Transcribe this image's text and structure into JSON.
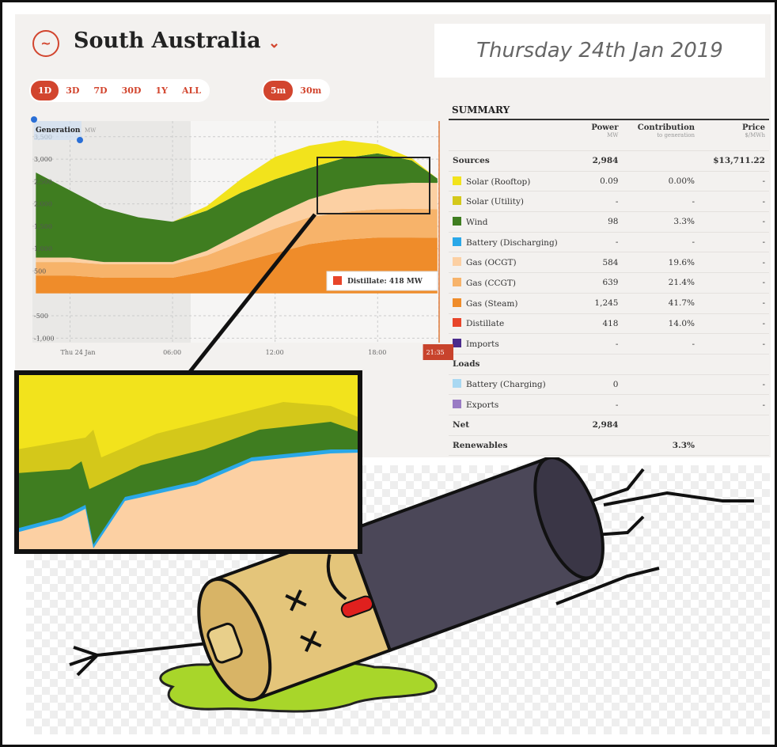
{
  "header": {
    "title": "South Australia",
    "date": "Thursday 24th Jan 2019"
  },
  "range_buttons": [
    "1D",
    "3D",
    "7D",
    "30D",
    "1Y",
    "ALL"
  ],
  "interval_buttons": [
    "5m",
    "30m"
  ],
  "chart_data": {
    "type": "area",
    "stacked": true,
    "y_label": "Generation",
    "y_unit": "MW",
    "x": [
      -2,
      0,
      2,
      4,
      6,
      8,
      10,
      12,
      14,
      16,
      18,
      20,
      21.5
    ],
    "series": [
      {
        "name": "Gas (Steam)",
        "color": "#ef8c2a",
        "values": [
          400,
          400,
          350,
          350,
          350,
          500,
          700,
          900,
          1100,
          1200,
          1250,
          1250,
          1245
        ]
      },
      {
        "name": "Gas (CCGT)",
        "color": "#f7b36a",
        "values": [
          300,
          300,
          300,
          300,
          300,
          350,
          450,
          550,
          600,
          620,
          630,
          640,
          639
        ]
      },
      {
        "name": "Gas (OCGT)",
        "color": "#fcd0a3",
        "values": [
          100,
          100,
          50,
          50,
          50,
          100,
          200,
          300,
          400,
          500,
          550,
          580,
          584
        ]
      },
      {
        "name": "Wind",
        "color": "#3f7d20",
        "values": [
          1900,
          1500,
          1200,
          1000,
          900,
          900,
          900,
          800,
          700,
          700,
          700,
          500,
          98
        ]
      },
      {
        "name": "Solar (Rooftop)",
        "color": "#f2e31c",
        "values": [
          0,
          0,
          0,
          0,
          0,
          100,
          300,
          500,
          500,
          400,
          200,
          50,
          0
        ]
      }
    ],
    "xlim": [
      -2.2,
      21.6
    ],
    "ylim": [
      -1100,
      3850
    ],
    "yticks": [
      {
        "value": 3500,
        "label": "3,500"
      },
      {
        "value": 3000,
        "label": "3,000"
      },
      {
        "value": 2500,
        "label": "2,500"
      },
      {
        "value": 2000,
        "label": "2,000"
      },
      {
        "value": 1500,
        "label": "1,500"
      },
      {
        "value": 1000,
        "label": "1,000"
      },
      500,
      -500,
      {
        "value": -1000,
        "label": "-1,000"
      }
    ],
    "xticks": [
      {
        "value": 0,
        "label": "Thu 24 Jan"
      },
      {
        "value": 6,
        "label": "06:00"
      },
      {
        "value": 12,
        "label": "12:00"
      },
      {
        "value": 18,
        "label": "18:00"
      },
      {
        "value": 21.58,
        "label": "21:35"
      }
    ],
    "grid": true,
    "annotation": "Distillate: 418 MW",
    "annotation_color": "#e8452a"
  },
  "summary": {
    "title": "SUMMARY",
    "columns": [
      {
        "name": "Power",
        "unit": "MW"
      },
      {
        "name": "Contribution",
        "unit": "to generation"
      },
      {
        "name": "Price",
        "unit": "$/MWh"
      }
    ],
    "rows": [
      {
        "cells": [
          "Sources",
          "2,984",
          null,
          "$13,711.22"
        ]
      },
      {
        "cells": [
          "Solar (Rooftop)",
          "0.09",
          "0.00%",
          "-"
        ],
        "color": "#f2e31c"
      },
      {
        "cells": [
          "Solar (Utility)",
          "-",
          "-",
          "-"
        ],
        "color": "#d4c81a"
      },
      {
        "cells": [
          "Wind",
          "98",
          "3.3%",
          "-"
        ],
        "color": "#3f7d20"
      },
      {
        "cells": [
          "Battery (Discharging)",
          "-",
          "-",
          "-"
        ],
        "color": "#2aa8e8"
      },
      {
        "cells": [
          "Gas (OCGT)",
          "584",
          "19.6%",
          "-"
        ],
        "color": "#fcd0a3"
      },
      {
        "cells": [
          "Gas (CCGT)",
          "639",
          "21.4%",
          "-"
        ],
        "color": "#f7b36a"
      },
      {
        "cells": [
          "Gas (Steam)",
          "1,245",
          "41.7%",
          "-"
        ],
        "color": "#ef8c2a"
      },
      {
        "cells": [
          "Distillate",
          "418",
          "14.0%",
          "-"
        ],
        "color": "#e8452a"
      },
      {
        "cells": [
          "Imports",
          "-",
          "-",
          "-"
        ],
        "color": "#4b2a8c"
      },
      {
        "cells": [
          "Loads",
          null,
          null,
          null
        ]
      },
      {
        "cells": [
          "Battery (Charging)",
          "0",
          null,
          "-"
        ],
        "color": "#a9d8f2"
      },
      {
        "cells": [
          "Exports",
          "-",
          null,
          "-"
        ],
        "color": "#9a7cc4"
      },
      {
        "cells": [
          "Net",
          "2,984",
          null,
          null
        ]
      },
      {
        "cells": [
          "Renewables",
          null,
          "3.3%",
          null
        ]
      }
    ]
  }
}
